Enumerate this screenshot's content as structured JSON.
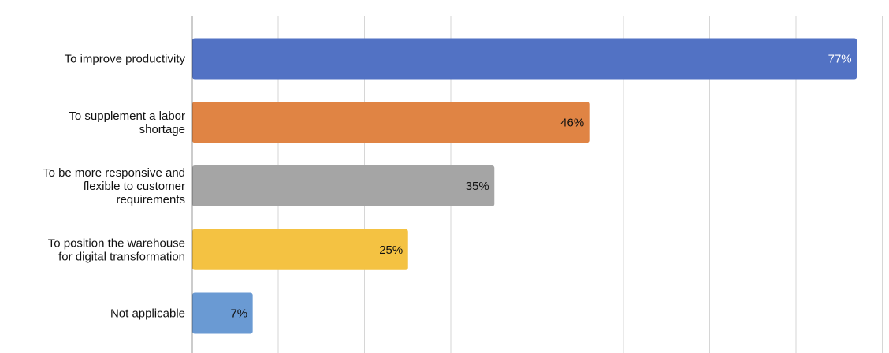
{
  "chart_data": {
    "type": "bar",
    "orientation": "horizontal",
    "title": "",
    "xlabel": "",
    "ylabel": "",
    "xlim": [
      0,
      80
    ],
    "grid": true,
    "legend": "none",
    "categories": [
      "To improve productivity",
      "To supplement a labor shortage",
      "To be more responsive and flexible to customer requirements",
      "To position the warehouse for digital transformation",
      "Not applicable"
    ],
    "category_lines": [
      [
        "To improve productivity"
      ],
      [
        "To supplement a labor",
        "shortage"
      ],
      [
        "To be more responsive and",
        "flexible to customer",
        "requirements"
      ],
      [
        "To position the warehouse",
        "for digital transformation"
      ],
      [
        "Not applicable"
      ]
    ],
    "values": [
      77,
      46,
      35,
      25,
      7
    ],
    "value_labels": [
      "77%",
      "46%",
      "35%",
      "25%",
      "7%"
    ],
    "colors": [
      "#5272c4",
      "#e08444",
      "#a5a5a5",
      "#f4c242",
      "#6a9ad3"
    ],
    "label_colors": [
      "#ffffff",
      "#111111",
      "#111111",
      "#111111",
      "#111111"
    ]
  }
}
